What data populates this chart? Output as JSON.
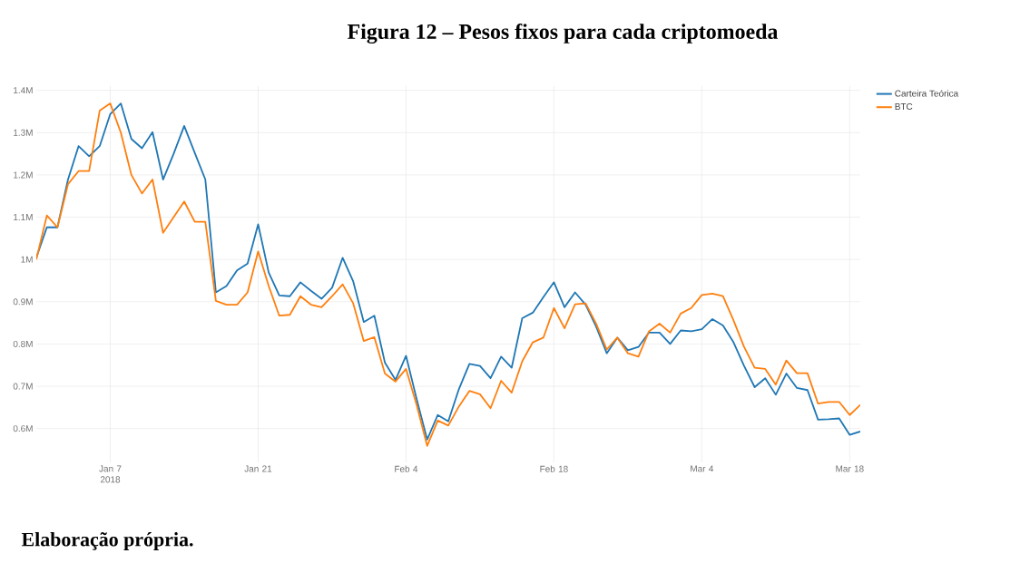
{
  "chart_data": {
    "type": "line",
    "title": "Figura 12 – Pesos fixos para cada criptomoeda",
    "annotations": [
      "Elaboração própria."
    ],
    "x": [
      "2017-12-31",
      "2018-01-01",
      "2018-01-02",
      "2018-01-03",
      "2018-01-04",
      "2018-01-05",
      "2018-01-06",
      "2018-01-07",
      "2018-01-08",
      "2018-01-09",
      "2018-01-10",
      "2018-01-11",
      "2018-01-12",
      "2018-01-13",
      "2018-01-14",
      "2018-01-15",
      "2018-01-16",
      "2018-01-17",
      "2018-01-18",
      "2018-01-19",
      "2018-01-20",
      "2018-01-21",
      "2018-01-22",
      "2018-01-23",
      "2018-01-24",
      "2018-01-25",
      "2018-01-26",
      "2018-01-27",
      "2018-01-28",
      "2018-01-29",
      "2018-01-30",
      "2018-01-31",
      "2018-02-01",
      "2018-02-02",
      "2018-02-03",
      "2018-02-04",
      "2018-02-05",
      "2018-02-06",
      "2018-02-07",
      "2018-02-08",
      "2018-02-09",
      "2018-02-10",
      "2018-02-11",
      "2018-02-12",
      "2018-02-13",
      "2018-02-14",
      "2018-02-15",
      "2018-02-16",
      "2018-02-17",
      "2018-02-18",
      "2018-02-19",
      "2018-02-20",
      "2018-02-21",
      "2018-02-22",
      "2018-02-23",
      "2018-02-24",
      "2018-02-25",
      "2018-02-26",
      "2018-02-27",
      "2018-02-28",
      "2018-03-01",
      "2018-03-02",
      "2018-03-03",
      "2018-03-04",
      "2018-03-05",
      "2018-03-06",
      "2018-03-07",
      "2018-03-08",
      "2018-03-09",
      "2018-03-10",
      "2018-03-11",
      "2018-03-12",
      "2018-03-13",
      "2018-03-14",
      "2018-03-15",
      "2018-03-16",
      "2018-03-17",
      "2018-03-18",
      "2018-03-19"
    ],
    "series": [
      {
        "name": "Carteira Teórica",
        "color": "#1f77b4",
        "values": [
          1004000,
          1076000,
          1076000,
          1189000,
          1268000,
          1244000,
          1268000,
          1344000,
          1369000,
          1285000,
          1263000,
          1301000,
          1189000,
          1250000,
          1316000,
          1252000,
          1189000,
          922000,
          937000,
          974000,
          990000,
          1083000,
          969000,
          915000,
          913000,
          946000,
          926000,
          907000,
          933000,
          1004000,
          948000,
          852000,
          867000,
          756000,
          715000,
          772000,
          670000,
          574000,
          632000,
          617000,
          693000,
          753000,
          748000,
          719000,
          770000,
          744000,
          861000,
          874000,
          911000,
          946000,
          887000,
          922000,
          893000,
          841000,
          778000,
          815000,
          785000,
          793000,
          827000,
          827000,
          800000,
          832000,
          830000,
          835000,
          859000,
          844000,
          804000,
          748000,
          698000,
          719000,
          680000,
          730000,
          696000,
          691000,
          621000,
          622000,
          624000,
          585000,
          593000
        ]
      },
      {
        "name": "BTC",
        "color": "#ff7f0e",
        "values": [
          1000000,
          1104000,
          1076000,
          1178000,
          1209000,
          1209000,
          1352000,
          1369000,
          1300000,
          1200000,
          1156000,
          1189000,
          1063000,
          1100000,
          1137000,
          1089000,
          1089000,
          902000,
          893000,
          893000,
          922000,
          1019000,
          937000,
          867000,
          869000,
          913000,
          893000,
          887000,
          913000,
          941000,
          896000,
          807000,
          816000,
          730000,
          711000,
          741000,
          656000,
          559000,
          619000,
          607000,
          652000,
          689000,
          681000,
          648000,
          713000,
          685000,
          759000,
          804000,
          815000,
          885000,
          837000,
          894000,
          896000,
          848000,
          787000,
          815000,
          778000,
          770000,
          830000,
          848000,
          827000,
          872000,
          885000,
          916000,
          919000,
          913000,
          856000,
          793000,
          744000,
          741000,
          704000,
          761000,
          731000,
          731000,
          659000,
          663000,
          663000,
          632000,
          656000
        ]
      }
    ],
    "xlim": [
      "2017-12-31",
      "2018-03-19"
    ],
    "xticks": [
      {
        "value": "2018-01-07",
        "label": "Jan 7 2018"
      },
      {
        "value": "2018-01-21",
        "label": "Jan 21"
      },
      {
        "value": "2018-02-04",
        "label": "Feb 4"
      },
      {
        "value": "2018-02-18",
        "label": "Feb 18"
      },
      {
        "value": "2018-03-04",
        "label": "Mar 4"
      },
      {
        "value": "2018-03-18",
        "label": "Mar 18"
      }
    ],
    "ylim": [
      520000,
      1410000
    ],
    "yticks": [
      {
        "value": 600000,
        "label": "0.6M"
      },
      {
        "value": 700000,
        "label": "0.7M"
      },
      {
        "value": 800000,
        "label": "0.8M"
      },
      {
        "value": 900000,
        "label": "0.9M"
      },
      {
        "value": 1000000,
        "label": "1M"
      },
      {
        "value": 1100000,
        "label": "1.1M"
      },
      {
        "value": 1200000,
        "label": "1.2M"
      },
      {
        "value": 1300000,
        "label": "1.3M"
      },
      {
        "value": 1400000,
        "label": "1.4M"
      }
    ],
    "grid": true,
    "legend": "top right"
  }
}
